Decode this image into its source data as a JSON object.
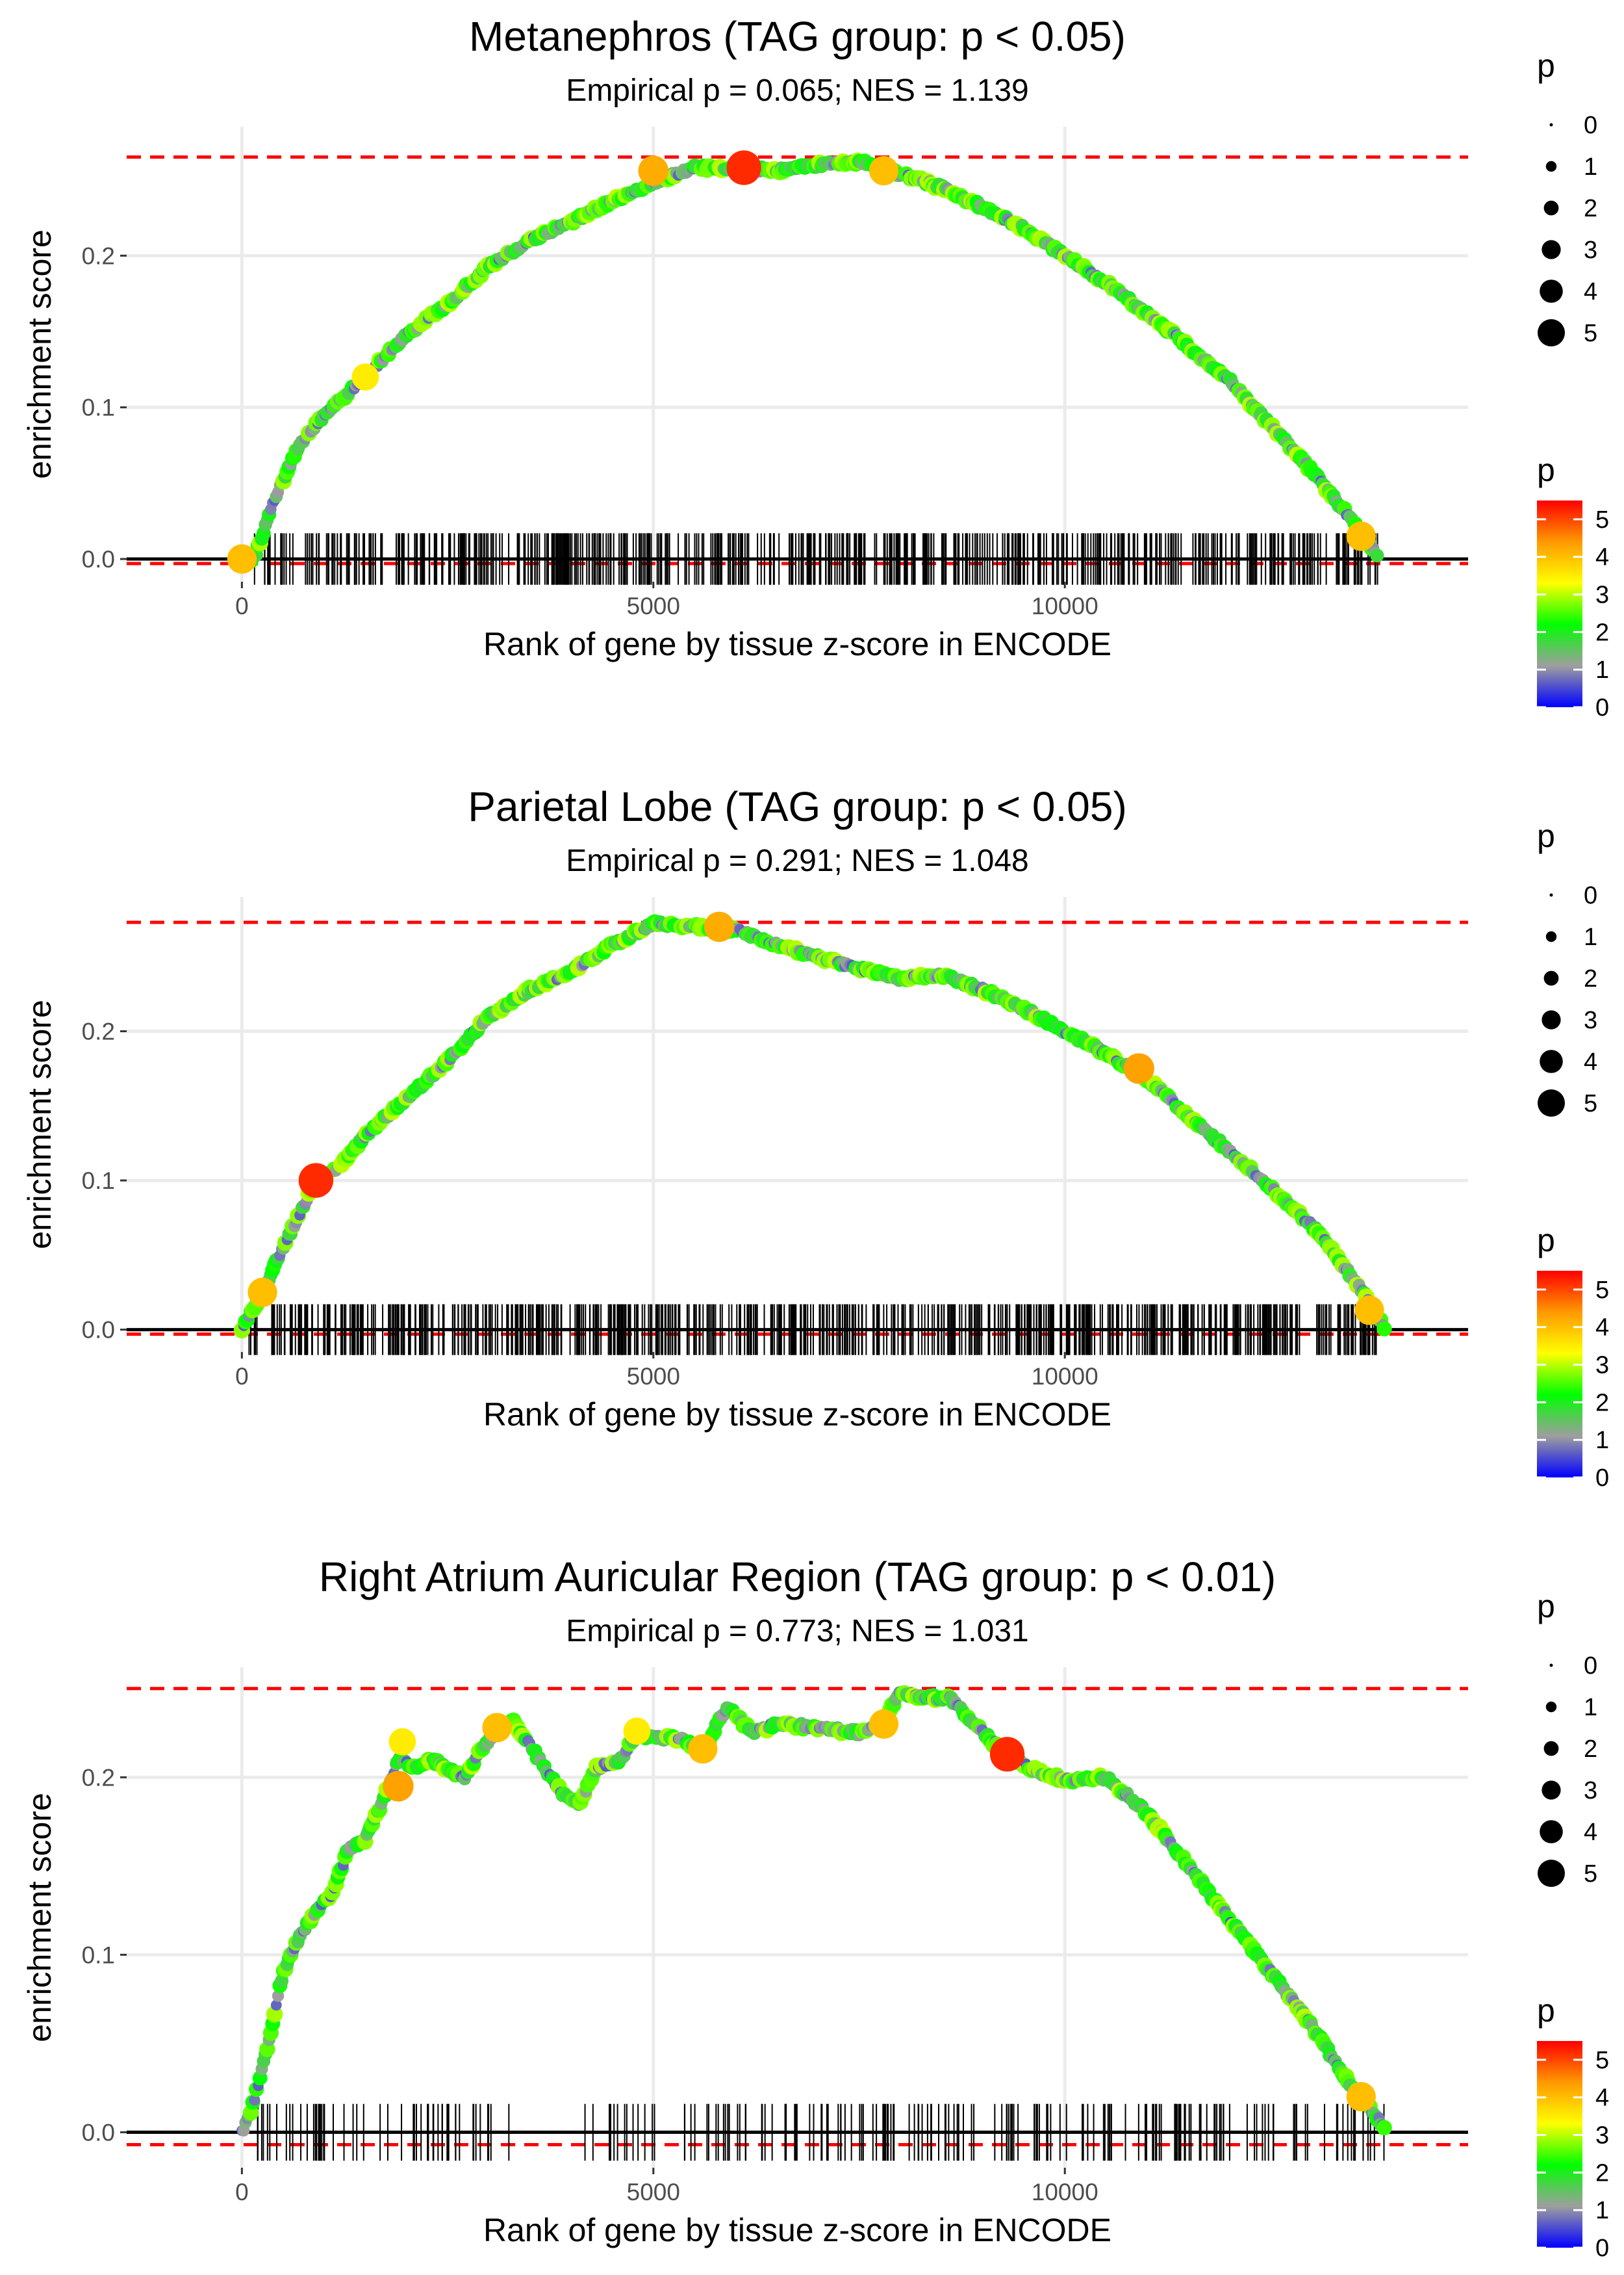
{
  "chart_data": [
    {
      "type": "scatter",
      "title": "Metanephros (TAG group: p < 0.05)",
      "subtitle": "Empirical p = 0.065; NES = 1.139",
      "xlabel": "Rank of gene by tissue z-score in ENCODE",
      "ylabel": "enrichment score",
      "xlim": [
        -1400,
        14900
      ],
      "ylim": [
        -0.015,
        0.285
      ],
      "x_ticks": [
        0,
        5000,
        10000
      ],
      "x_tick_labels": [
        "0",
        "5000",
        "10000"
      ],
      "y_ticks": [
        0.0,
        0.1,
        0.2
      ],
      "y_tick_labels": [
        "0.0",
        "0.1",
        "0.2"
      ],
      "max_es": 0.265,
      "min_es": -0.003,
      "rug_half_height": 0.017,
      "rug_spans": [
        [
          150,
          13800
        ]
      ],
      "rug_count": 560,
      "curve": [
        [
          0,
          0
        ],
        [
          150,
          0
        ],
        [
          400,
          0.04
        ],
        [
          700,
          0.075
        ],
        [
          1000,
          0.095
        ],
        [
          1500,
          0.12
        ],
        [
          2000,
          0.148
        ],
        [
          2500,
          0.168
        ],
        [
          3000,
          0.193
        ],
        [
          3500,
          0.21
        ],
        [
          4000,
          0.222
        ],
        [
          4500,
          0.236
        ],
        [
          5000,
          0.248
        ],
        [
          5500,
          0.258
        ],
        [
          6000,
          0.258
        ],
        [
          6500,
          0.256
        ],
        [
          7000,
          0.26
        ],
        [
          7500,
          0.262
        ],
        [
          8000,
          0.254
        ],
        [
          8500,
          0.245
        ],
        [
          9000,
          0.232
        ],
        [
          9500,
          0.218
        ],
        [
          10000,
          0.2
        ],
        [
          10500,
          0.182
        ],
        [
          11000,
          0.162
        ],
        [
          11500,
          0.14
        ],
        [
          12000,
          0.118
        ],
        [
          12500,
          0.088
        ],
        [
          13000,
          0.058
        ],
        [
          13500,
          0.025
        ],
        [
          13800,
          0.003
        ]
      ],
      "highlight_points": [
        {
          "x": 0,
          "y": 0,
          "p": 4
        },
        {
          "x": 1500,
          "y": 0.12,
          "p": 3.5
        },
        {
          "x": 5000,
          "y": 0.256,
          "p": 4.2
        },
        {
          "x": 6100,
          "y": 0.258,
          "p": 5.2
        },
        {
          "x": 7800,
          "y": 0.256,
          "p": 4
        },
        {
          "x": 13600,
          "y": 0.015,
          "p": 4
        }
      ],
      "size_legend": {
        "title": "p",
        "values": [
          0,
          1,
          2,
          3,
          4,
          5
        ],
        "labels": [
          "0",
          "1",
          "2",
          "3",
          "4",
          "5"
        ]
      },
      "color_legend": {
        "title": "p",
        "ticks": [
          0,
          1,
          2,
          3,
          4,
          5
        ],
        "labels": [
          "0",
          "1",
          "2",
          "3",
          "4",
          "5"
        ],
        "range": [
          0,
          5.5
        ]
      }
    },
    {
      "type": "scatter",
      "title": "Parietal Lobe (TAG group: p < 0.05)",
      "subtitle": "Empirical p = 0.291; NES = 1.048",
      "xlabel": "Rank of gene by tissue z-score in ENCODE",
      "ylabel": "enrichment score",
      "xlim": [
        -1400,
        14900
      ],
      "ylim": [
        -0.015,
        0.29
      ],
      "x_ticks": [
        0,
        5000,
        10000
      ],
      "x_tick_labels": [
        "0",
        "5000",
        "10000"
      ],
      "y_ticks": [
        0.0,
        0.1,
        0.2
      ],
      "y_tick_labels": [
        "0.0",
        "0.1",
        "0.2"
      ],
      "max_es": 0.273,
      "min_es": -0.003,
      "rug_half_height": 0.017,
      "rug_spans": [
        [
          80,
          13800
        ]
      ],
      "rug_count": 640,
      "curve": [
        [
          0,
          0
        ],
        [
          250,
          0.025
        ],
        [
          500,
          0.055
        ],
        [
          900,
          0.1
        ],
        [
          1200,
          0.11
        ],
        [
          1500,
          0.13
        ],
        [
          2000,
          0.155
        ],
        [
          2500,
          0.18
        ],
        [
          3000,
          0.21
        ],
        [
          3500,
          0.228
        ],
        [
          4000,
          0.24
        ],
        [
          4500,
          0.258
        ],
        [
          5000,
          0.272
        ],
        [
          5500,
          0.27
        ],
        [
          6000,
          0.268
        ],
        [
          6500,
          0.258
        ],
        [
          7000,
          0.25
        ],
        [
          7500,
          0.242
        ],
        [
          8000,
          0.235
        ],
        [
          8500,
          0.238
        ],
        [
          9000,
          0.228
        ],
        [
          9500,
          0.215
        ],
        [
          10000,
          0.2
        ],
        [
          10500,
          0.185
        ],
        [
          11000,
          0.168
        ],
        [
          11500,
          0.143
        ],
        [
          12000,
          0.12
        ],
        [
          12500,
          0.095
        ],
        [
          13000,
          0.07
        ],
        [
          13500,
          0.035
        ],
        [
          13800,
          0.01
        ],
        [
          13900,
          0
        ]
      ],
      "highlight_points": [
        {
          "x": 250,
          "y": 0.025,
          "p": 4
        },
        {
          "x": 900,
          "y": 0.1,
          "p": 5.2
        },
        {
          "x": 5800,
          "y": 0.27,
          "p": 4.2
        },
        {
          "x": 10900,
          "y": 0.175,
          "p": 4.3
        },
        {
          "x": 13700,
          "y": 0.013,
          "p": 4
        }
      ],
      "size_legend": {
        "title": "p",
        "values": [
          0,
          1,
          2,
          3,
          4,
          5
        ],
        "labels": [
          "0",
          "1",
          "2",
          "3",
          "4",
          "5"
        ]
      },
      "color_legend": {
        "title": "p",
        "ticks": [
          0,
          1,
          2,
          3,
          4,
          5
        ],
        "labels": [
          "0",
          "1",
          "2",
          "3",
          "4",
          "5"
        ],
        "range": [
          0,
          5.5
        ]
      }
    },
    {
      "type": "scatter",
      "title": "Right Atrium Auricular Region (TAG group: p < 0.01)",
      "subtitle": "Empirical p = 0.773; NES = 1.031",
      "xlabel": "Rank of gene by tissue z-score in ENCODE",
      "ylabel": "enrichment score",
      "xlim": [
        -1400,
        14900
      ],
      "ylim": [
        -0.02,
        0.262
      ],
      "x_ticks": [
        0,
        5000,
        10000
      ],
      "x_tick_labels": [
        "0",
        "5000",
        "10000"
      ],
      "y_ticks": [
        0.0,
        0.1,
        0.2
      ],
      "y_tick_labels": [
        "0.0",
        "0.1",
        "0.2"
      ],
      "max_es": 0.25,
      "min_es": -0.007,
      "rug_half_height": 0.016,
      "rug_spans": [
        [
          50,
          3300
        ],
        [
          4100,
          13900
        ]
      ],
      "rug_count": 230,
      "curve": [
        [
          0,
          0
        ],
        [
          100,
          0.01
        ],
        [
          300,
          0.045
        ],
        [
          500,
          0.09
        ],
        [
          700,
          0.11
        ],
        [
          900,
          0.125
        ],
        [
          1100,
          0.135
        ],
        [
          1300,
          0.16
        ],
        [
          1500,
          0.165
        ],
        [
          1700,
          0.185
        ],
        [
          1900,
          0.21
        ],
        [
          2100,
          0.205
        ],
        [
          2300,
          0.21
        ],
        [
          2500,
          0.205
        ],
        [
          2700,
          0.2
        ],
        [
          2900,
          0.215
        ],
        [
          3100,
          0.225
        ],
        [
          3300,
          0.232
        ],
        [
          3900,
          0.19
        ],
        [
          4100,
          0.185
        ],
        [
          4300,
          0.205
        ],
        [
          4600,
          0.21
        ],
        [
          4800,
          0.225
        ],
        [
          5000,
          0.222
        ],
        [
          5300,
          0.222
        ],
        [
          5600,
          0.215
        ],
        [
          5900,
          0.24
        ],
        [
          6200,
          0.225
        ],
        [
          6500,
          0.23
        ],
        [
          7000,
          0.228
        ],
        [
          7500,
          0.225
        ],
        [
          7800,
          0.232
        ],
        [
          8000,
          0.248
        ],
        [
          8300,
          0.245
        ],
        [
          8600,
          0.245
        ],
        [
          8900,
          0.23
        ],
        [
          9300,
          0.212
        ],
        [
          9600,
          0.205
        ],
        [
          10000,
          0.198
        ],
        [
          10500,
          0.2
        ],
        [
          11000,
          0.18
        ],
        [
          11500,
          0.15
        ],
        [
          12000,
          0.12
        ],
        [
          12500,
          0.09
        ],
        [
          13000,
          0.06
        ],
        [
          13500,
          0.025
        ],
        [
          13900,
          0.002
        ]
      ],
      "highlight_points": [
        {
          "x": 1900,
          "y": 0.195,
          "p": 4.3
        },
        {
          "x": 1950,
          "y": 0.22,
          "p": 3.5
        },
        {
          "x": 3100,
          "y": 0.228,
          "p": 4
        },
        {
          "x": 4800,
          "y": 0.226,
          "p": 3.5
        },
        {
          "x": 5600,
          "y": 0.216,
          "p": 4
        },
        {
          "x": 7800,
          "y": 0.23,
          "p": 4
        },
        {
          "x": 9300,
          "y": 0.213,
          "p": 5.2
        },
        {
          "x": 13600,
          "y": 0.02,
          "p": 4
        }
      ],
      "size_legend": {
        "title": "p",
        "values": [
          0,
          1,
          2,
          3,
          4,
          5
        ],
        "labels": [
          "0",
          "1",
          "2",
          "3",
          "4",
          "5"
        ]
      },
      "color_legend": {
        "title": "p",
        "ticks": [
          0,
          1,
          2,
          3,
          4,
          5
        ],
        "labels": [
          "0",
          "1",
          "2",
          "3",
          "4",
          "5"
        ],
        "range": [
          0,
          5.5
        ]
      }
    }
  ],
  "colors": {
    "background": "#ffffff",
    "grid": "#ebebeb",
    "dashed": "#ff0000",
    "zero_line": "#000000",
    "curve_line": "#bdbdbd",
    "scale": [
      "#0000ff",
      "#9e9e9e",
      "#00ff00",
      "#ffff00",
      "#ff9900",
      "#ff0000"
    ]
  }
}
